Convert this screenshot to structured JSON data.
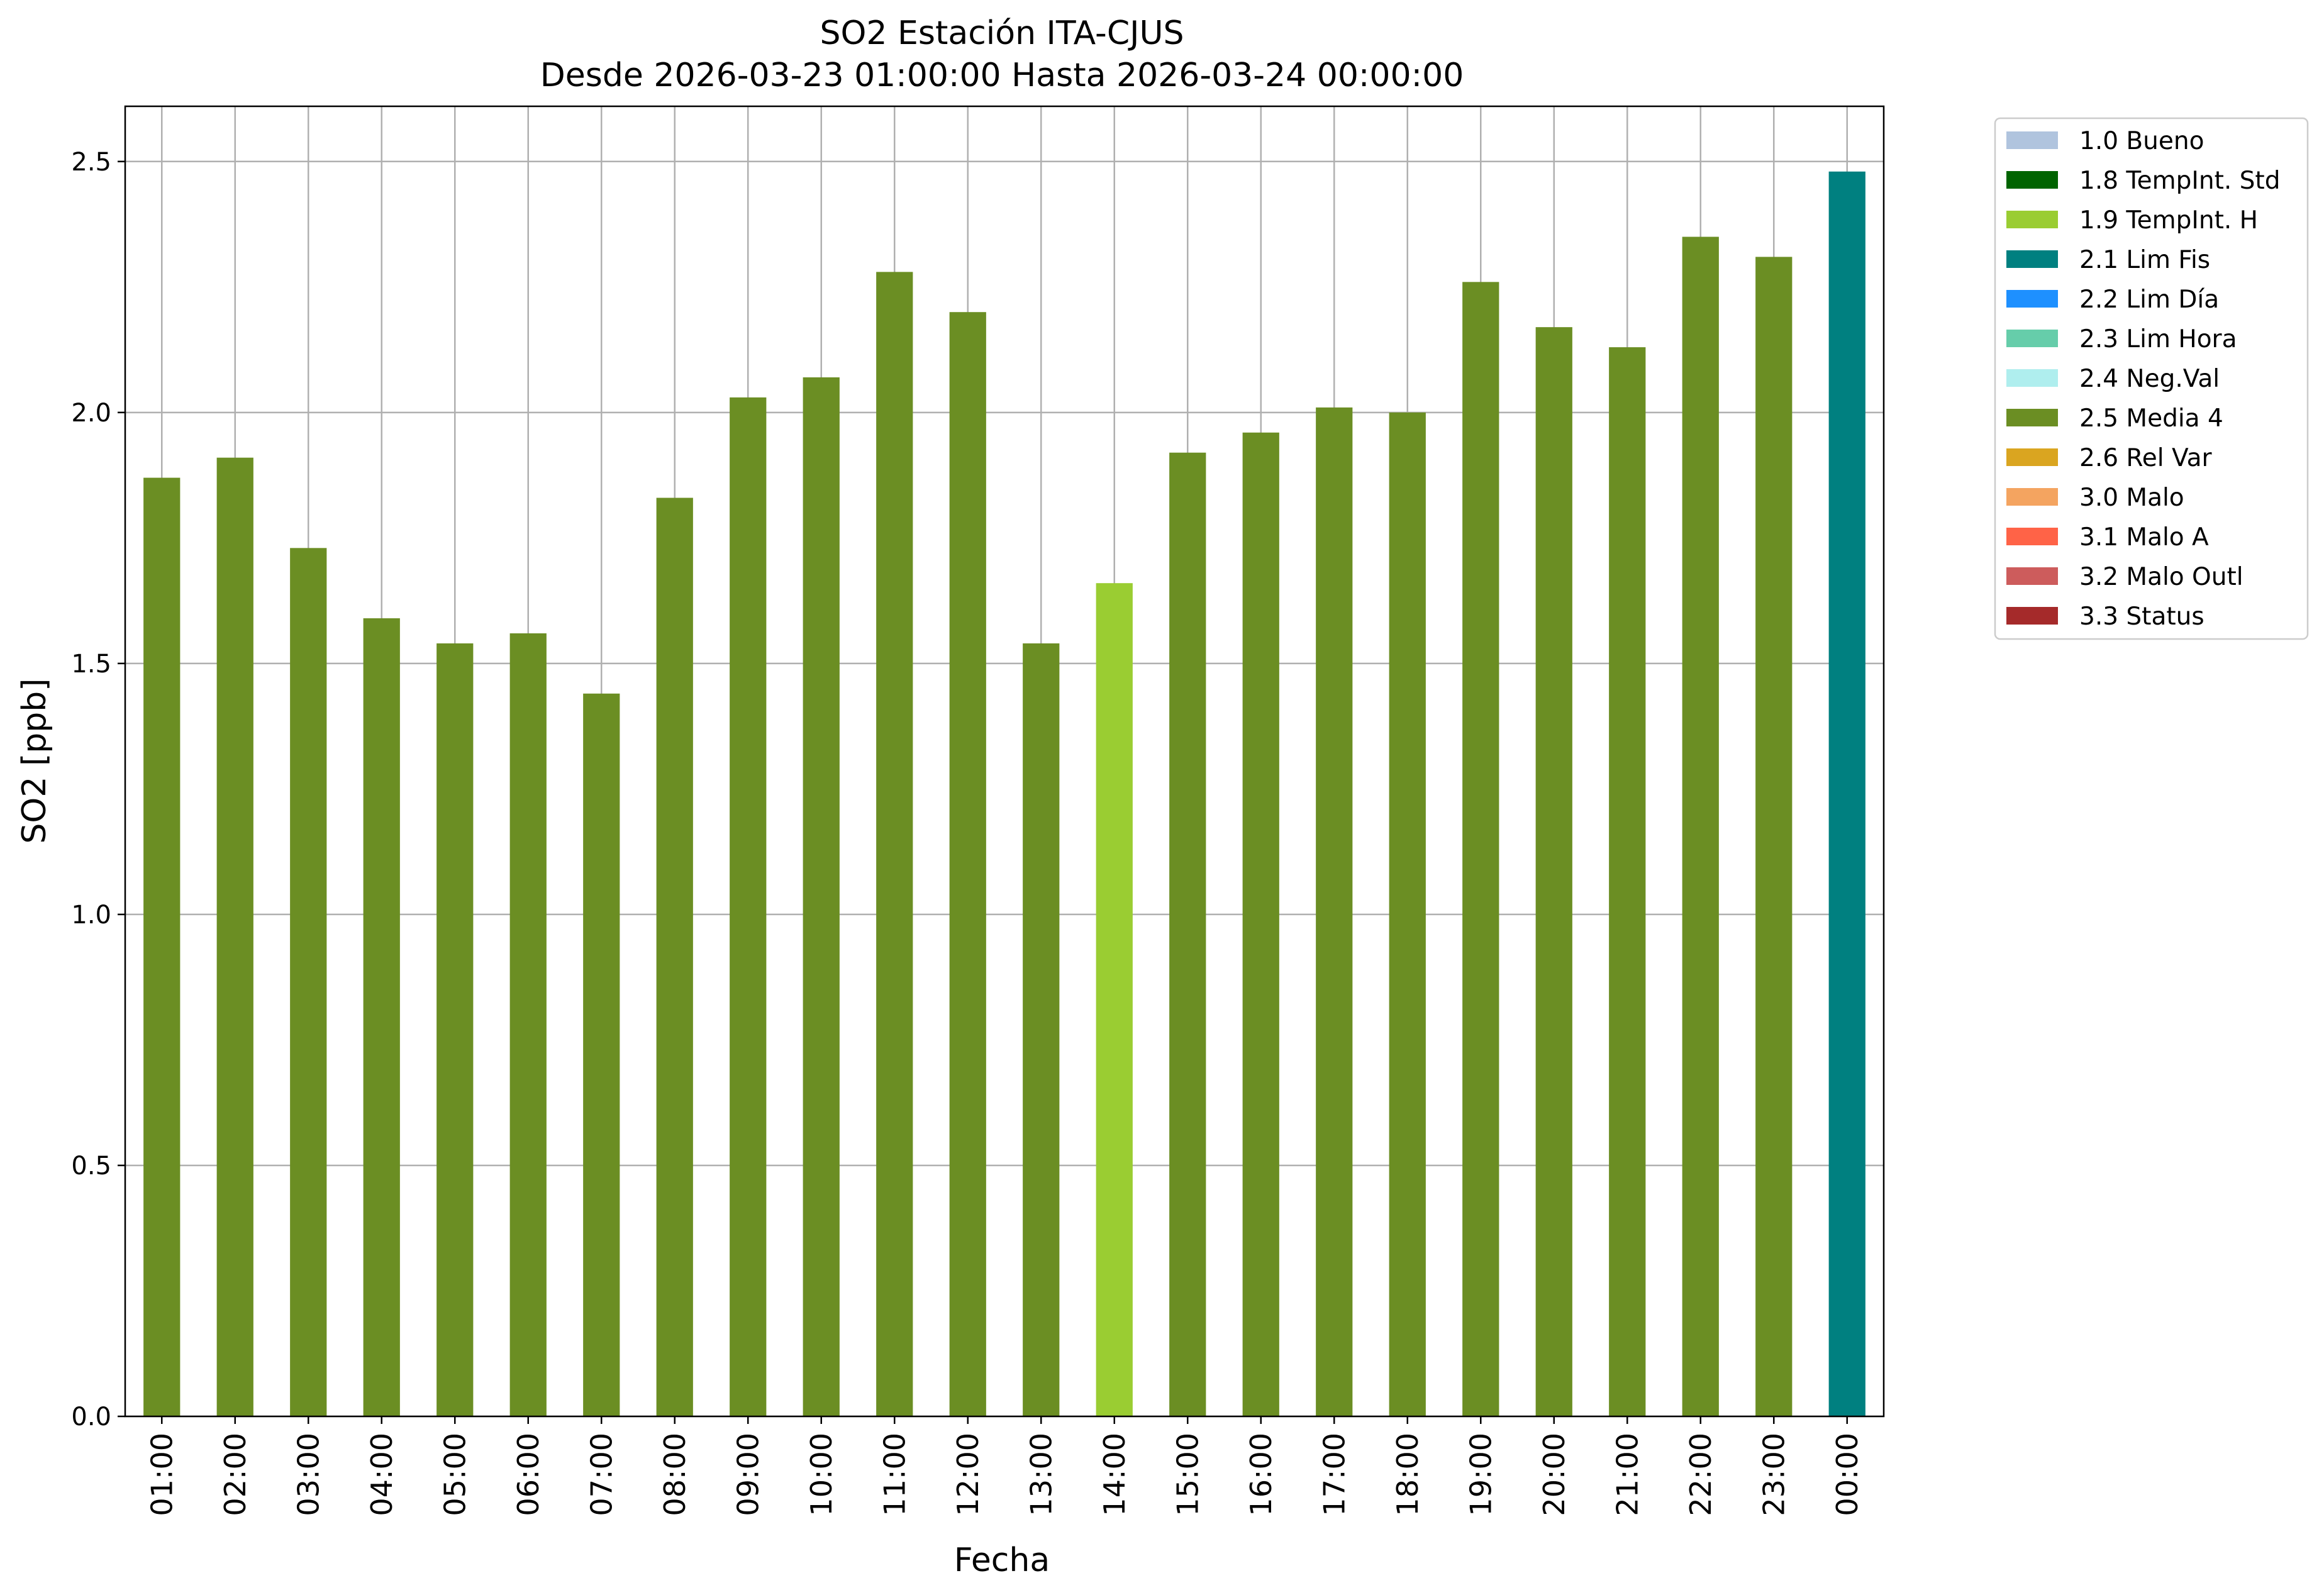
{
  "chart_data": {
    "type": "bar",
    "title": "SO2 Estación ITA-CJUS",
    "subtitle": "Desde 2026-03-23 01:00:00 Hasta 2026-03-24 00:00:00",
    "xlabel": "Fecha",
    "ylabel": "SO2 [ppb]",
    "ylim": [
      0,
      2.61
    ],
    "yticks": [
      "0.0",
      "0.5",
      "1.0",
      "1.5",
      "2.0",
      "2.5"
    ],
    "grid": true,
    "legend_position": "outside-top-right",
    "categories": [
      "01:00",
      "02:00",
      "03:00",
      "04:00",
      "05:00",
      "06:00",
      "07:00",
      "08:00",
      "09:00",
      "10:00",
      "11:00",
      "12:00",
      "13:00",
      "14:00",
      "15:00",
      "16:00",
      "17:00",
      "18:00",
      "19:00",
      "20:00",
      "21:00",
      "22:00",
      "23:00",
      "00:00"
    ],
    "values": [
      1.87,
      1.91,
      1.73,
      1.59,
      1.54,
      1.56,
      1.44,
      1.83,
      2.03,
      2.07,
      2.28,
      2.2,
      1.54,
      1.66,
      1.92,
      1.96,
      2.01,
      2.0,
      2.26,
      2.17,
      2.13,
      2.35,
      2.31,
      2.48
    ],
    "flags": [
      "2.5 Media 4",
      "2.5 Media 4",
      "2.5 Media 4",
      "2.5 Media 4",
      "2.5 Media 4",
      "2.5 Media 4",
      "2.5 Media 4",
      "2.5 Media 4",
      "2.5 Media 4",
      "2.5 Media 4",
      "2.5 Media 4",
      "2.5 Media 4",
      "2.5 Media 4",
      "1.9 TempInt. H",
      "2.5 Media 4",
      "2.5 Media 4",
      "2.5 Media 4",
      "2.5 Media 4",
      "2.5 Media 4",
      "2.5 Media 4",
      "2.5 Media 4",
      "2.5 Media 4",
      "2.5 Media 4",
      "2.1 Lim Fis"
    ],
    "legend": [
      {
        "label": "1.0 Bueno",
        "color": "#b0c4de"
      },
      {
        "label": "1.8 TempInt. Std",
        "color": "#006400"
      },
      {
        "label": "1.9 TempInt. H",
        "color": "#9acd32"
      },
      {
        "label": "2.1 Lim Fis",
        "color": "#008080"
      },
      {
        "label": "2.2 Lim Día",
        "color": "#1e90ff"
      },
      {
        "label": "2.3 Lim Hora",
        "color": "#66cdaa"
      },
      {
        "label": "2.4 Neg.Val",
        "color": "#afeeee"
      },
      {
        "label": "2.5 Media 4",
        "color": "#6b8e23"
      },
      {
        "label": "2.6 Rel Var",
        "color": "#daa520"
      },
      {
        "label": "3.0 Malo",
        "color": "#f4a460"
      },
      {
        "label": "3.1 Malo A",
        "color": "#ff6347"
      },
      {
        "label": "3.2 Malo Outl",
        "color": "#cd5c5c"
      },
      {
        "label": "3.3 Status",
        "color": "#a52a2a"
      }
    ]
  }
}
